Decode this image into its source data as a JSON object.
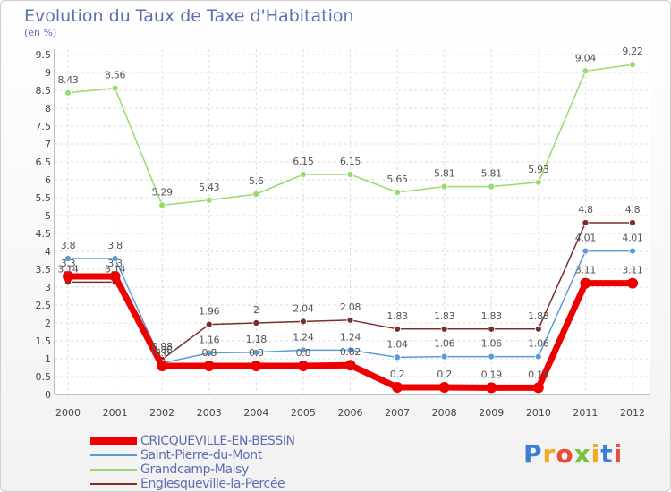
{
  "chart_data": {
    "type": "line",
    "title": "Evolution du Taux de Taxe d'Habitation",
    "subtitle": "(en %)",
    "x": [
      "2000",
      "2001",
      "2002",
      "2003",
      "2004",
      "2005",
      "2006",
      "2007",
      "2008",
      "2009",
      "2010",
      "2011",
      "2012"
    ],
    "yticks": [
      "0",
      "0.5",
      "1",
      "1.5",
      "2",
      "2.5",
      "3",
      "3.5",
      "4",
      "4.5",
      "5",
      "5.5",
      "6",
      "6.5",
      "7",
      "7.5",
      "8",
      "8.5",
      "9",
      "9.5"
    ],
    "ylim": [
      0,
      9.5
    ],
    "grid": true,
    "series": [
      {
        "name": "CRICQUEVILLE-EN-BESSIN",
        "color": "#ee0000",
        "values": [
          3.3,
          3.3,
          0.8,
          0.8,
          0.8,
          0.8,
          0.82,
          0.2,
          0.2,
          0.19,
          0.19,
          3.11,
          3.11
        ],
        "labels": [
          "3.3",
          "3.3",
          "0.8",
          "0.8",
          "0.8",
          "0.8",
          "0.82",
          "0.2",
          "0.2",
          "0.19",
          "0.19",
          "3.11",
          "3.11"
        ]
      },
      {
        "name": "Saint-Pierre-du-Mont",
        "color": "#5b9bd5",
        "values": [
          3.8,
          3.8,
          0.88,
          1.16,
          1.18,
          1.24,
          1.24,
          1.04,
          1.06,
          1.06,
          1.06,
          4.01,
          4.01
        ],
        "labels": [
          "3.8",
          "3.8",
          "0.88",
          "1.16",
          "1.18",
          "1.24",
          "1.24",
          "1.04",
          "1.06",
          "1.06",
          "1.06",
          "4.01",
          "4.01"
        ]
      },
      {
        "name": "Grandcamp-Maisy",
        "color": "#99d96e",
        "values": [
          8.43,
          8.56,
          5.29,
          5.43,
          5.6,
          6.15,
          6.15,
          5.65,
          5.81,
          5.81,
          5.93,
          9.04,
          9.22
        ],
        "labels": [
          "8.43",
          "8.56",
          "5.29",
          "5.43",
          "5.6",
          "6.15",
          "6.15",
          "5.65",
          "5.81",
          "5.81",
          "5.93",
          "9.04",
          "9.22"
        ]
      },
      {
        "name": "Englesqueville-la-Percée",
        "color": "#7b2d2d",
        "values": [
          3.14,
          3.14,
          0.98,
          1.96,
          2.0,
          2.04,
          2.08,
          1.83,
          1.83,
          1.83,
          1.83,
          4.8,
          4.8
        ],
        "labels": [
          "3.14",
          "3.14",
          "0.98",
          "1.96",
          "2",
          "2.04",
          "2.08",
          "1.83",
          "1.83",
          "1.83",
          "1.83",
          "4.8",
          "4.8"
        ]
      }
    ]
  },
  "logo": {
    "letters": [
      "P",
      "r",
      "o",
      "x",
      "i",
      "t",
      "i"
    ],
    "colors": [
      "#3a7fd5",
      "#f5a623",
      "#e94b3c",
      "#7ac143",
      "#f5a623",
      "#3a7fd5",
      "#e94b3c"
    ]
  }
}
